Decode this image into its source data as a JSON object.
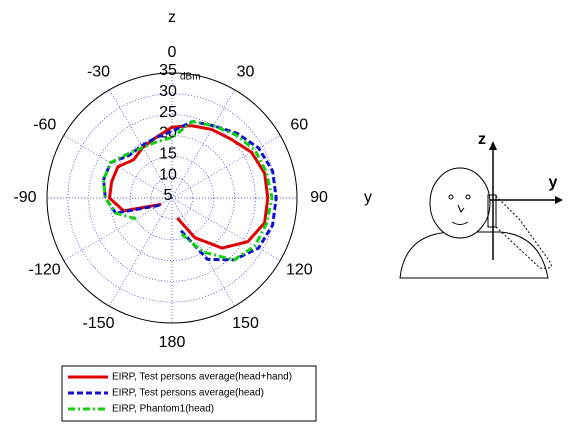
{
  "chart_data": {
    "type": "polar",
    "title": "z",
    "theta": [
      -120,
      -105,
      -90,
      -75,
      -60,
      -45,
      -30,
      -15,
      0,
      15,
      30,
      45,
      60,
      75,
      90,
      105,
      120,
      135,
      150,
      165
    ],
    "thetaticks": [
      0,
      30,
      60,
      90,
      120,
      150,
      180,
      -150,
      -120,
      -90,
      -60,
      -30
    ],
    "rlim": [
      5,
      35
    ],
    "rticks": [
      5,
      10,
      15,
      20,
      25,
      30,
      35
    ],
    "r_unit": "dBm",
    "grid": true,
    "legend": "bottom",
    "series": [
      {
        "name": "EIRP, Test persons average(head+hand)",
        "color": "#e00000",
        "style": "solid",
        "values": [
          8,
          17,
          20,
          20,
          20,
          18,
          19,
          20,
          22,
          23,
          24,
          25,
          27,
          28,
          28,
          28,
          26,
          22,
          16,
          10
        ]
      },
      {
        "name": "EIRP, Test persons average(head)",
        "color": "#1010d0",
        "style": "dashed",
        "values": [
          8.5,
          19,
          21,
          22,
          22,
          19.5,
          19.5,
          20,
          21,
          24,
          25,
          27,
          29,
          30,
          30,
          30,
          29,
          26,
          22,
          13
        ]
      },
      {
        "name": "EIRP, Phantom1(head)",
        "color": "#10d010",
        "style": "dashdot",
        "values": [
          15,
          19,
          21,
          22,
          22,
          20,
          19,
          19,
          19.5,
          24,
          25,
          26.5,
          28,
          28.5,
          29,
          28.5,
          28,
          26,
          20,
          14
        ]
      }
    ]
  },
  "diagram": {
    "labels": [
      "z",
      "y",
      "y"
    ]
  }
}
